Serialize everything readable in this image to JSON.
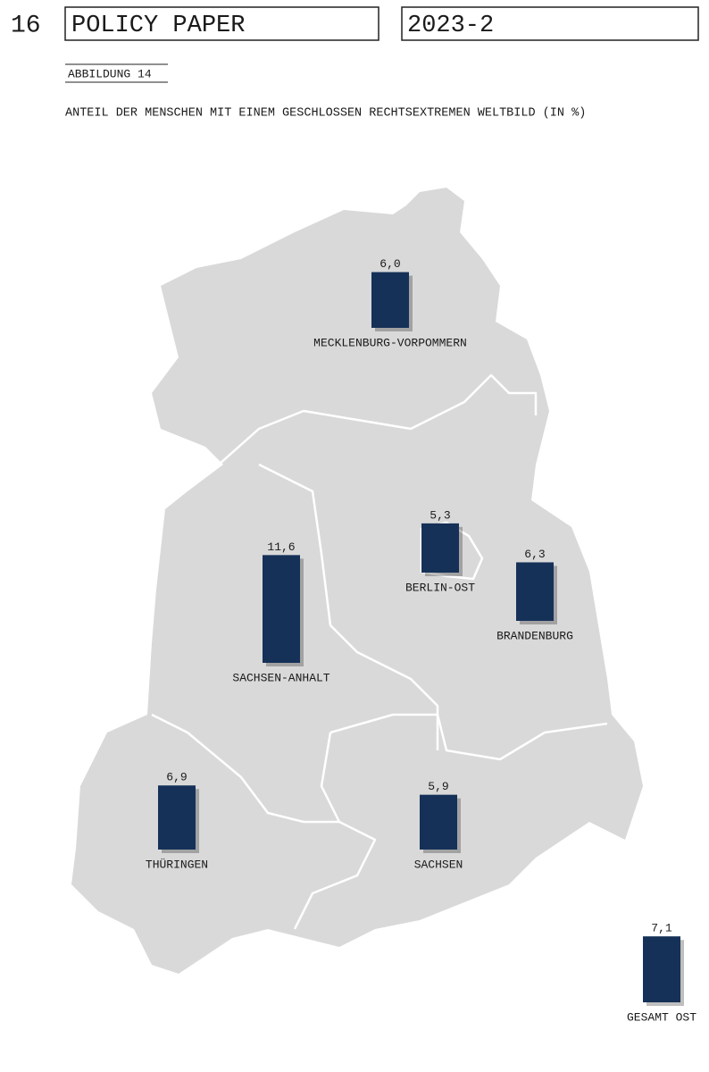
{
  "header": {
    "page_number": "16",
    "series_title": "POLICY PAPER",
    "issue": "2023-2"
  },
  "figure_label": "ABBILDUNG 14",
  "chart_data": {
    "type": "bar",
    "title": "ANTEIL DER MENSCHEN MIT EINEM GESCHLOSSEN RECHTSEXTREMEN WELTBILD (IN %)",
    "categories": [
      "MECKLENBURG-VORPOMMERN",
      "BERLIN-OST",
      "BRANDENBURG",
      "SACHSEN-ANHALT",
      "THÜRINGEN",
      "SACHSEN",
      "GESAMT OST"
    ],
    "values": [
      6.0,
      5.3,
      6.3,
      11.6,
      6.9,
      5.9,
      7.1
    ],
    "value_labels": [
      "6,0",
      "5,3",
      "6,3",
      "11,6",
      "6,9",
      "5,9",
      "7,1"
    ],
    "color": "#163158"
  }
}
